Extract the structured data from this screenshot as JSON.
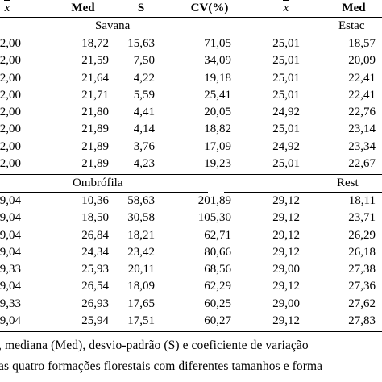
{
  "header": {
    "col1": "x",
    "col2": "Med",
    "col3": "S",
    "col4": "CV(%)",
    "col5": "x",
    "col6": "Med"
  },
  "sections": [
    {
      "left_label": "Savana",
      "right_label": "Estac",
      "rows": [
        [
          "2,00",
          "18,72",
          "15,63",
          "71,05",
          "25,01",
          "18,57"
        ],
        [
          "2,00",
          "21,59",
          "7,50",
          "34,09",
          "25,01",
          "20,09"
        ],
        [
          "2,00",
          "21,64",
          "4,22",
          "19,18",
          "25,01",
          "22,41"
        ],
        [
          "2,00",
          "21,71",
          "5,59",
          "25,41",
          "25,01",
          "22,41"
        ],
        [
          "2,00",
          "21,80",
          "4,41",
          "20,05",
          "24,92",
          "22,76"
        ],
        [
          "2,00",
          "21,89",
          "4,14",
          "18,82",
          "25,01",
          "23,14"
        ],
        [
          "2,00",
          "21,89",
          "3,76",
          "17,09",
          "24,92",
          "23,34"
        ],
        [
          "2,00",
          "21,89",
          "4,23",
          "19,23",
          "25,01",
          "22,67"
        ]
      ]
    },
    {
      "left_label": "Ombrófila",
      "right_label": "Rest",
      "rows": [
        [
          "9,04",
          "10,36",
          "58,63",
          "201,89",
          "29,12",
          "18,11"
        ],
        [
          "9,04",
          "18,50",
          "30,58",
          "105,30",
          "29,12",
          "23,71"
        ],
        [
          "9,04",
          "26,84",
          "18,21",
          "62,71",
          "29,12",
          "26,29"
        ],
        [
          "9,04",
          "24,34",
          "23,42",
          "80,66",
          "29,12",
          "26,18"
        ],
        [
          "9,33",
          "25,93",
          "20,11",
          "68,56",
          "29,00",
          "27,38"
        ],
        [
          "9,04",
          "26,54",
          "18,09",
          "62,29",
          "29,12",
          "27,36"
        ],
        [
          "9,33",
          "26,93",
          "17,65",
          "60,25",
          "29,00",
          "27,62"
        ],
        [
          "9,04",
          "25,94",
          "17,51",
          "60,27",
          "29,12",
          "27,83"
        ]
      ]
    }
  ],
  "caption": {
    "line1": ", mediana (Med), desvio-padrão (S) e coeficiente de variação",
    "line2": "as quatro formações florestais com diferentes tamanhos e forma"
  }
}
